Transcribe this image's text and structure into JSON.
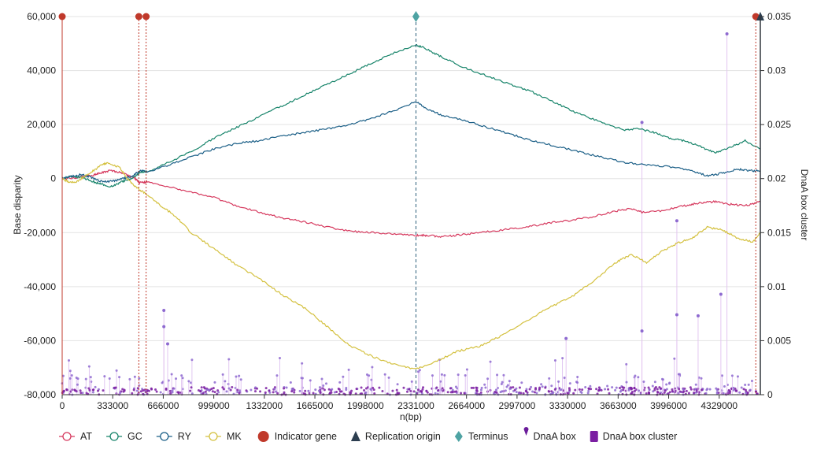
{
  "chart_data": {
    "type": "line",
    "xlabel": "n(bp)",
    "ylabel_left": "Base disparity",
    "ylabel_right": "DnaA box cluster",
    "x_ticks": [
      0,
      333000,
      666000,
      999000,
      1332000,
      1665000,
      1998000,
      2331000,
      2664000,
      2997000,
      3330000,
      3663000,
      3996000,
      4329000
    ],
    "x_tick_labels": [
      "0",
      "333000",
      "666000",
      "999000",
      "1332000",
      "1665000",
      "1998000",
      "2331000",
      "2664000",
      "2997000",
      "3330000",
      "3663000",
      "3996000",
      "4329000"
    ],
    "xlim": [
      0,
      4600000
    ],
    "ylim_left": [
      -80000,
      60000
    ],
    "y_ticks_left": [
      -80000,
      -60000,
      -40000,
      -20000,
      0,
      20000,
      40000,
      60000
    ],
    "y_tick_labels_left": [
      "-80,000",
      "-60,000",
      "-40,000",
      "-20,000",
      "0",
      "20,000",
      "40,000",
      "60,000"
    ],
    "ylim_right": [
      0,
      0.035
    ],
    "y_ticks_right": [
      0,
      0.005,
      0.01,
      0.015,
      0.02,
      0.025,
      0.03,
      0.035
    ],
    "y_tick_labels_right": [
      "0",
      "0.005",
      "0.01",
      "0.015",
      "0.02",
      "0.025",
      "0.03",
      "0.035"
    ],
    "grid": true,
    "legend_position": "bottom",
    "series": [
      {
        "name": "AT",
        "color": "#d6395e",
        "x": [
          0,
          100000,
          200000,
          250000,
          320000,
          400000,
          480000,
          510000,
          560000,
          700000,
          850000,
          1000000,
          1150000,
          1300000,
          1450000,
          1600000,
          1750000,
          1900000,
          2050000,
          2200000,
          2331000,
          2400000,
          2500000,
          2600000,
          2750000,
          2900000,
          3050000,
          3200000,
          3350000,
          3500000,
          3650000,
          3750000,
          3820000,
          3950000,
          4100000,
          4200000,
          4300000,
          4400000,
          4500000,
          4600000
        ],
        "y": [
          0,
          400,
          1200,
          2000,
          3000,
          2000,
          0,
          -1500,
          -1200,
          -3000,
          -5000,
          -7000,
          -10000,
          -12500,
          -14500,
          -16000,
          -18000,
          -19500,
          -20000,
          -20500,
          -21000,
          -21000,
          -21500,
          -21000,
          -20000,
          -19000,
          -18000,
          -16500,
          -15500,
          -14000,
          -12000,
          -11000,
          -12500,
          -12000,
          -10000,
          -9000,
          -8500,
          -9500,
          -10000,
          -8500
        ]
      },
      {
        "name": "GC",
        "color": "#17846a",
        "x": [
          0,
          60000,
          120000,
          200000,
          250000,
          330000,
          400000,
          460000,
          520000,
          560000,
          700000,
          850000,
          1000000,
          1150000,
          1300000,
          1450000,
          1600000,
          1750000,
          1900000,
          2050000,
          2200000,
          2331000,
          2400000,
          2500000,
          2650000,
          2800000,
          2950000,
          3100000,
          3250000,
          3400000,
          3550000,
          3700000,
          3800000,
          3900000,
          4000000,
          4100000,
          4200000,
          4300000,
          4400000,
          4500000,
          4600000
        ],
        "y": [
          0,
          800,
          500,
          -1000,
          -2000,
          -3000,
          -1000,
          0,
          2500,
          2500,
          6000,
          10000,
          15000,
          19000,
          23000,
          27000,
          31000,
          35000,
          39000,
          43000,
          47000,
          49500,
          48000,
          45000,
          41000,
          38000,
          35000,
          32000,
          28000,
          24000,
          21000,
          18000,
          18500,
          17000,
          15000,
          14000,
          12000,
          9500,
          11500,
          14000,
          11000
        ]
      },
      {
        "name": "RY",
        "color": "#1b5f87",
        "x": [
          0,
          60000,
          120000,
          180000,
          250000,
          330000,
          400000,
          460000,
          520000,
          560000,
          700000,
          850000,
          1000000,
          1150000,
          1300000,
          1450000,
          1600000,
          1750000,
          1900000,
          2050000,
          2200000,
          2331000,
          2400000,
          2500000,
          2650000,
          2800000,
          2950000,
          3100000,
          3250000,
          3400000,
          3550000,
          3700000,
          3850000,
          4000000,
          4150000,
          4250000,
          4350000,
          4450000,
          4520000,
          4600000
        ],
        "y": [
          0,
          800,
          1500,
          800,
          -1000,
          -1000,
          0,
          1000,
          3000,
          2500,
          5000,
          8000,
          11000,
          13000,
          14000,
          16000,
          17000,
          18500,
          20000,
          22500,
          25500,
          28500,
          26000,
          23500,
          21500,
          19000,
          16500,
          14000,
          12000,
          10000,
          8000,
          6000,
          5000,
          4500,
          3000,
          1000,
          2000,
          3500,
          3000,
          2800
        ]
      },
      {
        "name": "MK",
        "color": "#d4c140",
        "x": [
          0,
          50000,
          100000,
          180000,
          260000,
          300000,
          380000,
          430000,
          480000,
          560000,
          650000,
          750000,
          850000,
          1000000,
          1150000,
          1300000,
          1450000,
          1600000,
          1750000,
          1900000,
          2050000,
          2200000,
          2331000,
          2450000,
          2600000,
          2750000,
          2900000,
          3050000,
          3200000,
          3350000,
          3500000,
          3650000,
          3750000,
          3850000,
          3950000,
          4050000,
          4150000,
          4250000,
          4350000,
          4450000,
          4550000,
          4600000
        ],
        "y": [
          0,
          -1500,
          -1000,
          2000,
          5000,
          6000,
          4000,
          0,
          -3000,
          -6000,
          -10000,
          -14000,
          -20000,
          -26000,
          -32000,
          -37000,
          -43000,
          -48000,
          -55000,
          -62000,
          -66000,
          -69000,
          -70500,
          -68000,
          -64000,
          -62000,
          -58000,
          -53000,
          -48000,
          -44000,
          -38000,
          -31000,
          -28000,
          -31000,
          -27000,
          -24000,
          -22000,
          -18000,
          -19000,
          -22000,
          -23500,
          -20000
        ]
      }
    ],
    "markers": [
      {
        "name": "Indicator gene",
        "color": "#c0392b",
        "shape": "circle",
        "x": [
          0,
          505000,
          553000,
          4570000
        ]
      },
      {
        "name": "Replication origin",
        "color": "#2c3e50",
        "shape": "triangle",
        "x": [
          4600000
        ]
      },
      {
        "name": "Terminus",
        "color": "#4ea3a3",
        "shape": "diamond",
        "x": [
          2331000
        ]
      }
    ],
    "dnaa_box": {
      "name": "DnaA box",
      "color": "#8e6ad0",
      "highlight_peaks": [
        {
          "x": 670000,
          "y": 0.0078
        },
        {
          "x": 670000,
          "y": 0.0063
        },
        {
          "x": 695000,
          "y": 0.0047
        },
        {
          "x": 3320000,
          "y": 0.0052
        },
        {
          "x": 3820000,
          "y": 0.0252
        },
        {
          "x": 3820000,
          "y": 0.0059
        },
        {
          "x": 4050000,
          "y": 0.0161
        },
        {
          "x": 4050000,
          "y": 0.0074
        },
        {
          "x": 4190000,
          "y": 0.0073
        },
        {
          "x": 4340000,
          "y": 0.0093
        },
        {
          "x": 4380000,
          "y": 0.0334
        }
      ]
    },
    "dnaa_box_cluster": {
      "name": "DnaA box cluster",
      "color": "#7b1fa2"
    }
  },
  "legend": [
    {
      "label": "AT",
      "color": "#d6395e",
      "kind": "line-circle"
    },
    {
      "label": "GC",
      "color": "#17846a",
      "kind": "line-circle"
    },
    {
      "label": "RY",
      "color": "#1b5f87",
      "kind": "line-circle"
    },
    {
      "label": "MK",
      "color": "#d4c140",
      "kind": "line-circle"
    },
    {
      "label": "Indicator gene",
      "color": "#c0392b",
      "kind": "circle"
    },
    {
      "label": "Replication origin",
      "color": "#2c3e50",
      "kind": "triangle"
    },
    {
      "label": "Terminus",
      "color": "#4ea3a3",
      "kind": "diamond"
    },
    {
      "label": "DnaA box",
      "color": "#6a1b9a",
      "kind": "pin"
    },
    {
      "label": "DnaA box cluster",
      "color": "#7b1fa2",
      "kind": "square"
    }
  ]
}
